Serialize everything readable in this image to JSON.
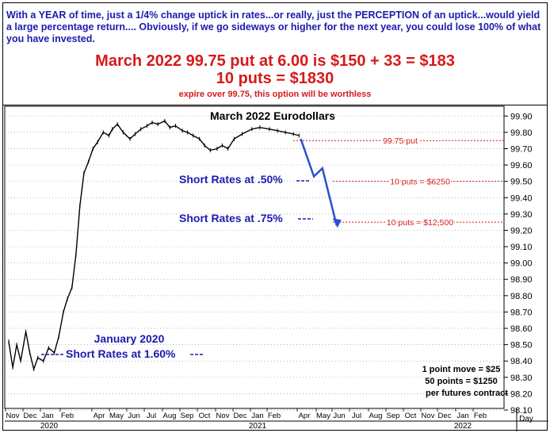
{
  "header": {
    "intro": "With a YEAR of time, just a 1/4% change uptick in rates...or really, just the PERCEPTION of an uptick...would yield a large percentage return.... Obviously, if we go sideways or higher for the next year, you could lose 100% of what you have invested.",
    "line1": "March 2022 99.75 put at 6.00 is $150 + 33 = $183",
    "line2": "10 puts = $1830",
    "line3": "expire over 99.75, this option will be worthless"
  },
  "chart_data": {
    "type": "line",
    "title": "March 2022 Eurodollars",
    "xlabel": "",
    "ylabel": "",
    "ylim": [
      98.1,
      99.95
    ],
    "yticks": [
      "99.90",
      "99.80",
      "99.70",
      "99.60",
      "99.50",
      "99.40",
      "99.30",
      "99.20",
      "99.10",
      "99.00",
      "98.90",
      "98.80",
      "98.70",
      "98.60",
      "98.50",
      "98.40",
      "98.30",
      "98.20",
      "98.10"
    ],
    "month_labels": [
      "Nov",
      "Dec",
      "Jan",
      "Feb",
      "Apr",
      "May",
      "Jun",
      "Jul",
      "Aug",
      "Sep",
      "Oct",
      "Nov",
      "Dec",
      "Jan",
      "Feb",
      "Apr",
      "May",
      "Jun",
      "Jul",
      "Aug",
      "Sep",
      "Oct",
      "Nov",
      "Dec",
      "Jan",
      "Feb"
    ],
    "year_labels": [
      "2020",
      "2021",
      "2022"
    ],
    "x_unit_label": "Day",
    "series": [
      {
        "values": [
          [
            "2019-11-01",
            98.52
          ],
          [
            "2019-11-08",
            98.36
          ],
          [
            "2019-11-15",
            98.5
          ],
          [
            "2019-11-22",
            98.4
          ],
          [
            "2019-12-01",
            98.58
          ],
          [
            "2019-12-08",
            98.45
          ],
          [
            "2019-12-15",
            98.35
          ],
          [
            "2019-12-22",
            98.42
          ],
          [
            "2020-01-01",
            98.4
          ],
          [
            "2020-01-10",
            98.48
          ],
          [
            "2020-01-20",
            98.45
          ],
          [
            "2020-01-28",
            98.55
          ],
          [
            "2020-02-05",
            98.7
          ],
          [
            "2020-02-12",
            98.78
          ],
          [
            "2020-02-20",
            98.85
          ],
          [
            "2020-02-27",
            99.05
          ],
          [
            "2020-03-05",
            99.35
          ],
          [
            "2020-03-12",
            99.55
          ],
          [
            "2020-03-20",
            99.62
          ],
          [
            "2020-03-28",
            99.7
          ],
          [
            "2020-04-05",
            99.74
          ],
          [
            "2020-04-15",
            99.8
          ],
          [
            "2020-04-25",
            99.78
          ],
          [
            "2020-05-01",
            99.82
          ],
          [
            "2020-05-10",
            99.85
          ],
          [
            "2020-05-20",
            99.8
          ],
          [
            "2020-06-01",
            99.76
          ],
          [
            "2020-06-10",
            99.79
          ],
          [
            "2020-06-20",
            99.82
          ],
          [
            "2020-07-01",
            99.84
          ],
          [
            "2020-07-10",
            99.86
          ],
          [
            "2020-07-20",
            99.85
          ],
          [
            "2020-08-01",
            99.87
          ],
          [
            "2020-08-10",
            99.83
          ],
          [
            "2020-08-20",
            99.84
          ],
          [
            "2020-09-01",
            99.81
          ],
          [
            "2020-09-10",
            99.8
          ],
          [
            "2020-09-20",
            99.78
          ],
          [
            "2020-10-01",
            99.76
          ],
          [
            "2020-10-10",
            99.72
          ],
          [
            "2020-10-20",
            99.69
          ],
          [
            "2020-11-01",
            99.7
          ],
          [
            "2020-11-10",
            99.72
          ],
          [
            "2020-11-20",
            99.7
          ],
          [
            "2020-12-01",
            99.76
          ],
          [
            "2020-12-15",
            99.79
          ],
          [
            "2021-01-01",
            99.82
          ],
          [
            "2021-01-15",
            99.83
          ],
          [
            "2021-02-01",
            99.82
          ],
          [
            "2021-02-15",
            99.81
          ],
          [
            "2021-03-01",
            99.8
          ],
          [
            "2021-03-15",
            99.79
          ],
          [
            "2021-03-25",
            99.78
          ]
        ]
      }
    ],
    "annotations": [
      {
        "text": "99.75 put",
        "value": 99.75,
        "color": "#d61a1a"
      },
      {
        "text": "10 puts = $6250",
        "value": 99.5,
        "color": "#d61a1a"
      },
      {
        "text": "10 puts = $12,500",
        "value": 99.25,
        "color": "#d61a1a"
      },
      {
        "text": "Short Rates at .50%",
        "color": "#1b1bb0"
      },
      {
        "text": "Short Rates at .75%",
        "color": "#1b1bb0"
      },
      {
        "text": "January 2020",
        "color": "#1b1bb0"
      },
      {
        "text": "Short Rates at 1.60%",
        "color": "#1b1bb0"
      },
      {
        "text": "1 point move = $25",
        "color": "#000000"
      },
      {
        "text": "50 points = $1250",
        "color": "#000000"
      },
      {
        "text": "per futures contract",
        "color": "#000000"
      }
    ],
    "projection": [
      [
        "2021-03-28",
        99.76
      ],
      [
        "2021-04-20",
        99.53
      ],
      [
        "2021-05-05",
        99.58
      ],
      [
        "2021-05-30",
        99.23
      ]
    ],
    "colors": {
      "price": "#000000",
      "projection": "#2c4fcf",
      "annotation_red": "#d61a1a",
      "annotation_blue": "#1b1bb0"
    }
  }
}
